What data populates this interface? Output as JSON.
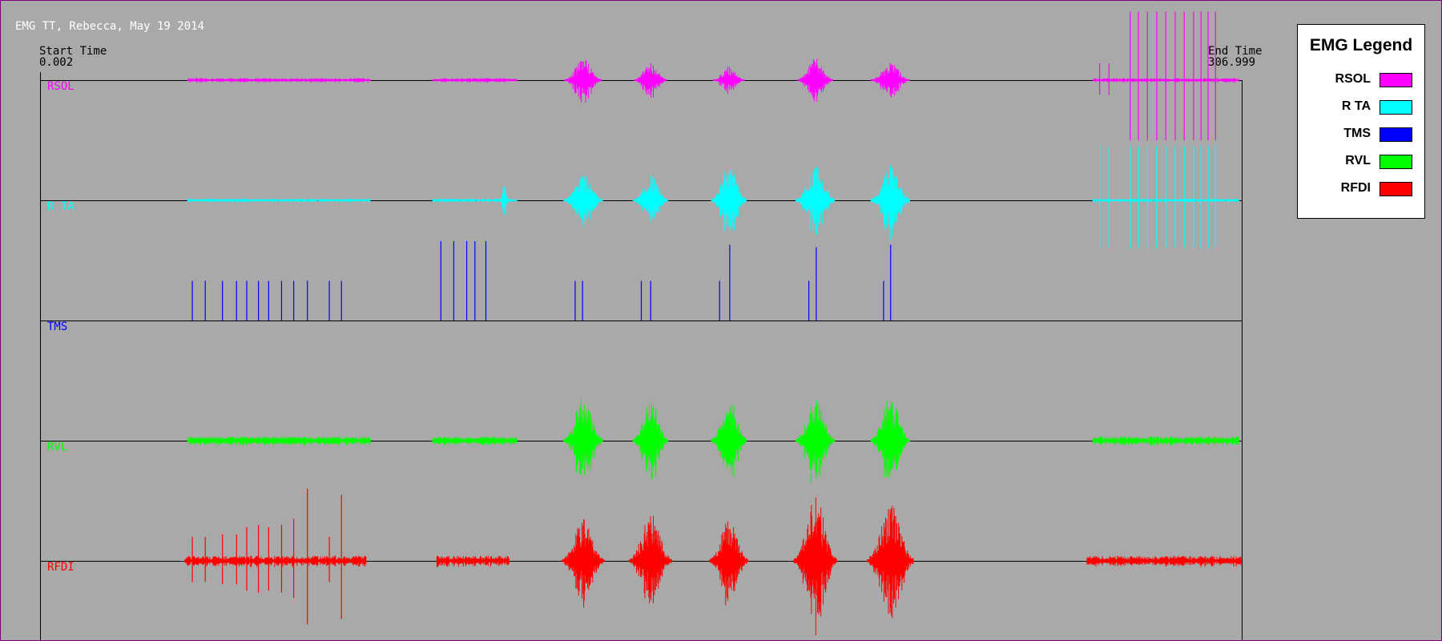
{
  "title": "EMG TT, Rebecca, May 19 2014",
  "start_time": {
    "label": "Start Time",
    "value": 0.002
  },
  "end_time": {
    "label": "End Time",
    "value": 306.999
  },
  "legend": {
    "title": "EMG Legend"
  },
  "channels": [
    {
      "name": "RSOL",
      "color": "#ff00ff",
      "tonic_amp": 0.012,
      "tonic": [
        [
          37.6,
          84.4
        ],
        [
          100.2,
          121.8
        ],
        [
          268.9,
          306.3
        ]
      ],
      "bursts": [
        {
          "time": 138.7,
          "half_width": 4.7,
          "amp": 0.19
        },
        {
          "time": 155.9,
          "half_width": 4.2,
          "amp": 0.15
        },
        {
          "time": 175.9,
          "half_width": 4.0,
          "amp": 0.12
        },
        {
          "time": 198.0,
          "half_width": 4.5,
          "amp": 0.18
        },
        {
          "time": 217.2,
          "half_width": 5.0,
          "amp": 0.15
        }
      ],
      "spikes_one_sided": false,
      "spikes": [
        {
          "time": 270.6,
          "amp": 0.14
        },
        {
          "time": 273.0,
          "amp": 0.14
        },
        {
          "time": 278.4,
          "amp": 0.57
        },
        {
          "time": 280.5,
          "amp": 0.57
        },
        {
          "time": 282.8,
          "amp": 0.57
        },
        {
          "time": 285.2,
          "amp": 0.57
        },
        {
          "time": 287.5,
          "amp": 0.57
        },
        {
          "time": 289.9,
          "amp": 0.57
        },
        {
          "time": 292.2,
          "amp": 0.57
        },
        {
          "time": 294.6,
          "amp": 0.57
        },
        {
          "time": 296.5,
          "amp": 0.57
        },
        {
          "time": 298.3,
          "amp": 0.57
        },
        {
          "time": 300.2,
          "amp": 0.57
        }
      ]
    },
    {
      "name": "R TA",
      "color": "#00ffff",
      "tonic_amp": 0.01,
      "tonic": [
        [
          37.6,
          84.4
        ],
        [
          100.2,
          121.8
        ],
        [
          268.9,
          306.3
        ]
      ],
      "bursts": [
        {
          "time": 118.5,
          "half_width": 1.0,
          "amp": 0.15
        },
        {
          "time": 138.7,
          "half_width": 5.0,
          "amp": 0.22
        },
        {
          "time": 155.9,
          "half_width": 4.5,
          "amp": 0.22
        },
        {
          "time": 175.9,
          "half_width": 4.5,
          "amp": 0.3
        },
        {
          "time": 198.0,
          "half_width": 5.0,
          "amp": 0.3
        },
        {
          "time": 217.2,
          "half_width": 5.0,
          "amp": 0.3
        }
      ],
      "spikes_one_sided": false,
      "spikes": [
        {
          "time": 270.6,
          "amp": 0.45
        },
        {
          "time": 273.0,
          "amp": 0.45
        },
        {
          "time": 278.4,
          "amp": 0.45
        },
        {
          "time": 280.5,
          "amp": 0.45
        },
        {
          "time": 282.8,
          "amp": 0.45
        },
        {
          "time": 285.2,
          "amp": 0.45
        },
        {
          "time": 287.5,
          "amp": 0.45
        },
        {
          "time": 289.9,
          "amp": 0.45
        },
        {
          "time": 292.2,
          "amp": 0.45
        },
        {
          "time": 294.6,
          "amp": 0.45
        },
        {
          "time": 296.5,
          "amp": 0.45
        },
        {
          "time": 298.3,
          "amp": 0.45
        },
        {
          "time": 300.2,
          "amp": 0.45
        }
      ]
    },
    {
      "name": "TMS",
      "color": "#0000ff",
      "tonic_amp": 0,
      "tonic": [],
      "bursts": [],
      "spikes_one_sided": true,
      "spikes": [
        {
          "time": 38.8,
          "amp": 0.33
        },
        {
          "time": 42.1,
          "amp": 0.33
        },
        {
          "time": 46.5,
          "amp": 0.33
        },
        {
          "time": 50.1,
          "amp": 0.33
        },
        {
          "time": 52.7,
          "amp": 0.33
        },
        {
          "time": 55.7,
          "amp": 0.33
        },
        {
          "time": 58.3,
          "amp": 0.33
        },
        {
          "time": 61.6,
          "amp": 0.33
        },
        {
          "time": 64.7,
          "amp": 0.33
        },
        {
          "time": 68.2,
          "amp": 0.33
        },
        {
          "time": 73.8,
          "amp": 0.33
        },
        {
          "time": 76.9,
          "amp": 0.33
        },
        {
          "time": 102.3,
          "amp": 0.66
        },
        {
          "time": 105.6,
          "amp": 0.66
        },
        {
          "time": 108.9,
          "amp": 0.66
        },
        {
          "time": 111.0,
          "amp": 0.66
        },
        {
          "time": 113.8,
          "amp": 0.66
        },
        {
          "time": 136.6,
          "amp": 0.33
        },
        {
          "time": 138.5,
          "amp": 0.33
        },
        {
          "time": 153.5,
          "amp": 0.33
        },
        {
          "time": 155.9,
          "amp": 0.33
        },
        {
          "time": 173.5,
          "amp": 0.33
        },
        {
          "time": 176.1,
          "amp": 0.63
        },
        {
          "time": 196.3,
          "amp": 0.33
        },
        {
          "time": 198.2,
          "amp": 0.61
        },
        {
          "time": 215.4,
          "amp": 0.33
        },
        {
          "time": 217.2,
          "amp": 0.63
        }
      ]
    },
    {
      "name": "RVL",
      "color": "#00ff00",
      "tonic_amp": 0.025,
      "tonic": [
        [
          37.6,
          84.4
        ],
        [
          100.2,
          121.8
        ],
        [
          268.9,
          306.3
        ]
      ],
      "bursts": [
        {
          "time": 138.7,
          "half_width": 5.0,
          "amp": 0.38
        },
        {
          "time": 155.9,
          "half_width": 4.5,
          "amp": 0.35
        },
        {
          "time": 175.9,
          "half_width": 4.5,
          "amp": 0.38
        },
        {
          "time": 198.0,
          "half_width": 5.0,
          "amp": 0.35
        },
        {
          "time": 217.2,
          "half_width": 5.0,
          "amp": 0.38
        }
      ],
      "spikes_one_sided": false,
      "spikes": []
    },
    {
      "name": "RFDI",
      "color": "#ff0000",
      "tonic_amp": 0.03,
      "tonic": [
        [
          36.9,
          83.2
        ],
        [
          101.3,
          119.8
        ],
        [
          267.4,
          306.9
        ]
      ],
      "bursts": [
        {
          "time": 138.7,
          "half_width": 5.5,
          "amp": 0.35
        },
        {
          "time": 155.9,
          "half_width": 5.5,
          "amp": 0.4
        },
        {
          "time": 175.9,
          "half_width": 5.0,
          "amp": 0.35
        },
        {
          "time": 198.0,
          "half_width": 5.5,
          "amp": 0.55
        },
        {
          "time": 217.2,
          "half_width": 6.0,
          "amp": 0.5
        }
      ],
      "spikes_one_sided": false,
      "spikes": [
        {
          "time": 38.8,
          "amp": 0.2
        },
        {
          "time": 42.1,
          "amp": 0.2
        },
        {
          "time": 46.5,
          "amp": 0.22
        },
        {
          "time": 50.1,
          "amp": 0.22
        },
        {
          "time": 52.7,
          "amp": 0.28
        },
        {
          "time": 55.7,
          "amp": 0.3
        },
        {
          "time": 58.3,
          "amp": 0.28
        },
        {
          "time": 61.6,
          "amp": 0.3
        },
        {
          "time": 64.7,
          "amp": 0.35
        },
        {
          "time": 68.2,
          "amp": 0.6
        },
        {
          "time": 73.8,
          "amp": 0.2
        },
        {
          "time": 76.9,
          "amp": 0.55
        }
      ]
    }
  ]
}
